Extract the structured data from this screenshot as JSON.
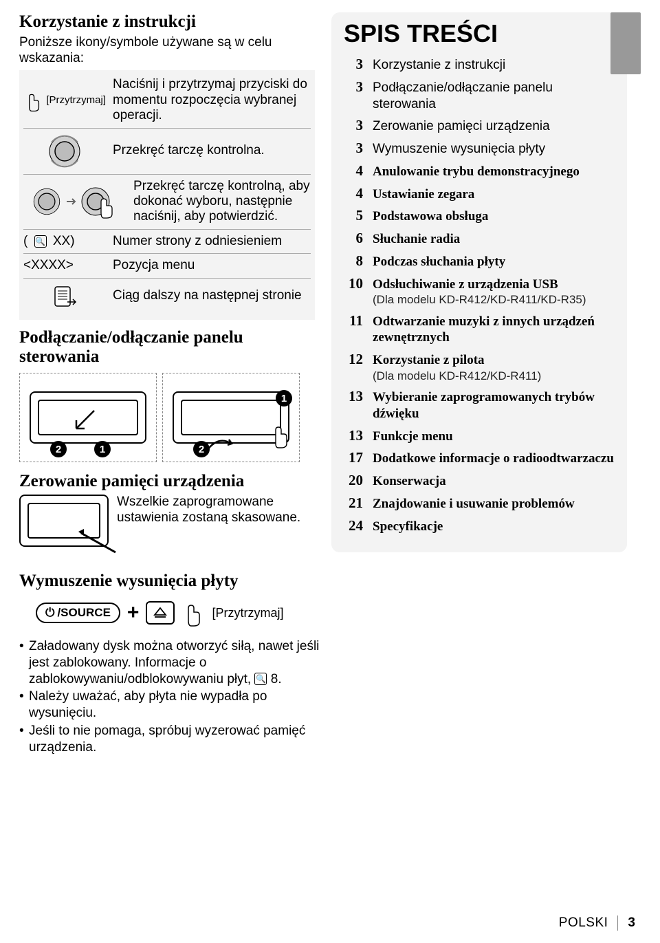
{
  "colors": {
    "page_bg": "#ffffff",
    "panel_bg": "#f3f3f3",
    "text": "#000000",
    "rule": "#aaaaaa",
    "thumb_tab": "#999999"
  },
  "left": {
    "section1_title": "Korzystanie z instrukcji",
    "section1_intro": "Poniższe ikony/symbole używane są w celu wskazania:",
    "rows": [
      {
        "label": "[Przytrzymaj]",
        "desc": "Naciśnij i przytrzymaj przyciski do momentu rozpoczęcia wybranej operacji."
      },
      {
        "label": "",
        "desc": "Przekręć tarczę kontrolna."
      },
      {
        "label": "",
        "desc": "Przekręć tarczę kontrolną, aby dokonać wyboru, następnie naciśnij, aby potwierdzić."
      },
      {
        "label": "( 🔍 XX)",
        "desc": "Numer strony z odniesieniem"
      },
      {
        "label": "<XXXX>",
        "desc": "Pozycja menu"
      },
      {
        "label": "",
        "desc": "Ciąg dalszy na następnej stronie"
      }
    ],
    "section2_title": "Podłączanie/odłączanie panelu sterowania",
    "section3_title": "Zerowanie pamięci urządzenia",
    "reset_text": "Wszelkie zaprogramowane ustawienia zostaną skasowane.",
    "section4_title": "Wymuszenie wysunięcia płyty",
    "eject_btn1": "⏻/SOURCE",
    "eject_plus": "+",
    "eject_label": "[Przytrzymaj]",
    "notes": [
      "Załadowany dysk można otworzyć siłą, nawet jeśli jest zablokowany. Informacje o zablokowywaniu/odblokowywaniu płyt, 🔍 8.",
      "Należy uważać, aby płyta nie wypadła po wysunięciu.",
      "Jeśli to nie pomaga, spróbuj wyzerować pamięć urządzenia."
    ]
  },
  "toc": {
    "title": "SPIS TREŚCI",
    "items": [
      {
        "page": "3",
        "label": "Korzystanie z instrukcji",
        "bold": false
      },
      {
        "page": "3",
        "label": "Podłączanie/odłączanie panelu sterowania",
        "bold": false
      },
      {
        "page": "3",
        "label": "Zerowanie pamięci urządzenia",
        "bold": false
      },
      {
        "page": "3",
        "label": "Wymuszenie wysunięcia płyty",
        "bold": false
      },
      {
        "page": "4",
        "label": "Anulowanie trybu demonstracyjnego",
        "bold": true
      },
      {
        "page": "4",
        "label": "Ustawianie zegara",
        "bold": true
      },
      {
        "page": "5",
        "label": "Podstawowa obsługa",
        "bold": true
      },
      {
        "page": "6",
        "label": "Słuchanie radia",
        "bold": true
      },
      {
        "page": "8",
        "label": "Podczas słuchania płyty",
        "bold": true
      },
      {
        "page": "10",
        "label": "Odsłuchiwanie z urządzenia USB",
        "bold": true,
        "sub": "(Dla modelu KD-R412/KD-R411/KD-R35)"
      },
      {
        "page": "11",
        "label": "Odtwarzanie muzyki z innych urządzeń zewnętrznych",
        "bold": true
      },
      {
        "page": "12",
        "label": "Korzystanie z pilota",
        "bold": true,
        "sub": "(Dla modelu KD-R412/KD-R411)"
      },
      {
        "page": "13",
        "label": "Wybieranie zaprogramowanych trybów dźwięku",
        "bold": true
      },
      {
        "page": "13",
        "label": "Funkcje menu",
        "bold": true
      },
      {
        "page": "17",
        "label": "Dodatkowe informacje o radioodtwarzaczu",
        "bold": true
      },
      {
        "page": "20",
        "label": "Konserwacja",
        "bold": true
      },
      {
        "page": "21",
        "label": "Znajdowanie i usuwanie problemów",
        "bold": true
      },
      {
        "page": "24",
        "label": "Specyfikacje",
        "bold": true
      }
    ]
  },
  "footer": {
    "language": "POLSKI",
    "page": "3"
  }
}
